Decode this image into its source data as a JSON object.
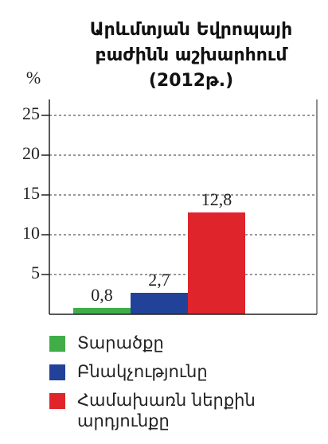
{
  "chart_data": {
    "type": "bar",
    "title": [
      "Արևմտյան Եվրոպայի",
      "բաժինն աշխարհում",
      "(2012թ.)"
    ],
    "y_label": "%",
    "series": [
      {
        "name": "Տարածքը",
        "color": "#3fae49",
        "values": [
          0.8
        ],
        "value_labels": [
          "0,8"
        ]
      },
      {
        "name": "Բնակչությունը",
        "color": "#22429a",
        "values": [
          2.7
        ],
        "value_labels": [
          "2,7"
        ]
      },
      {
        "name": "Համախառն ներքին արդյունքը",
        "color": "#e0242b",
        "values": [
          12.8
        ],
        "value_labels": [
          "12,8"
        ]
      }
    ],
    "ylim": [
      0,
      27
    ],
    "yticks": [
      5,
      10,
      15,
      20,
      25
    ],
    "grid": true
  }
}
